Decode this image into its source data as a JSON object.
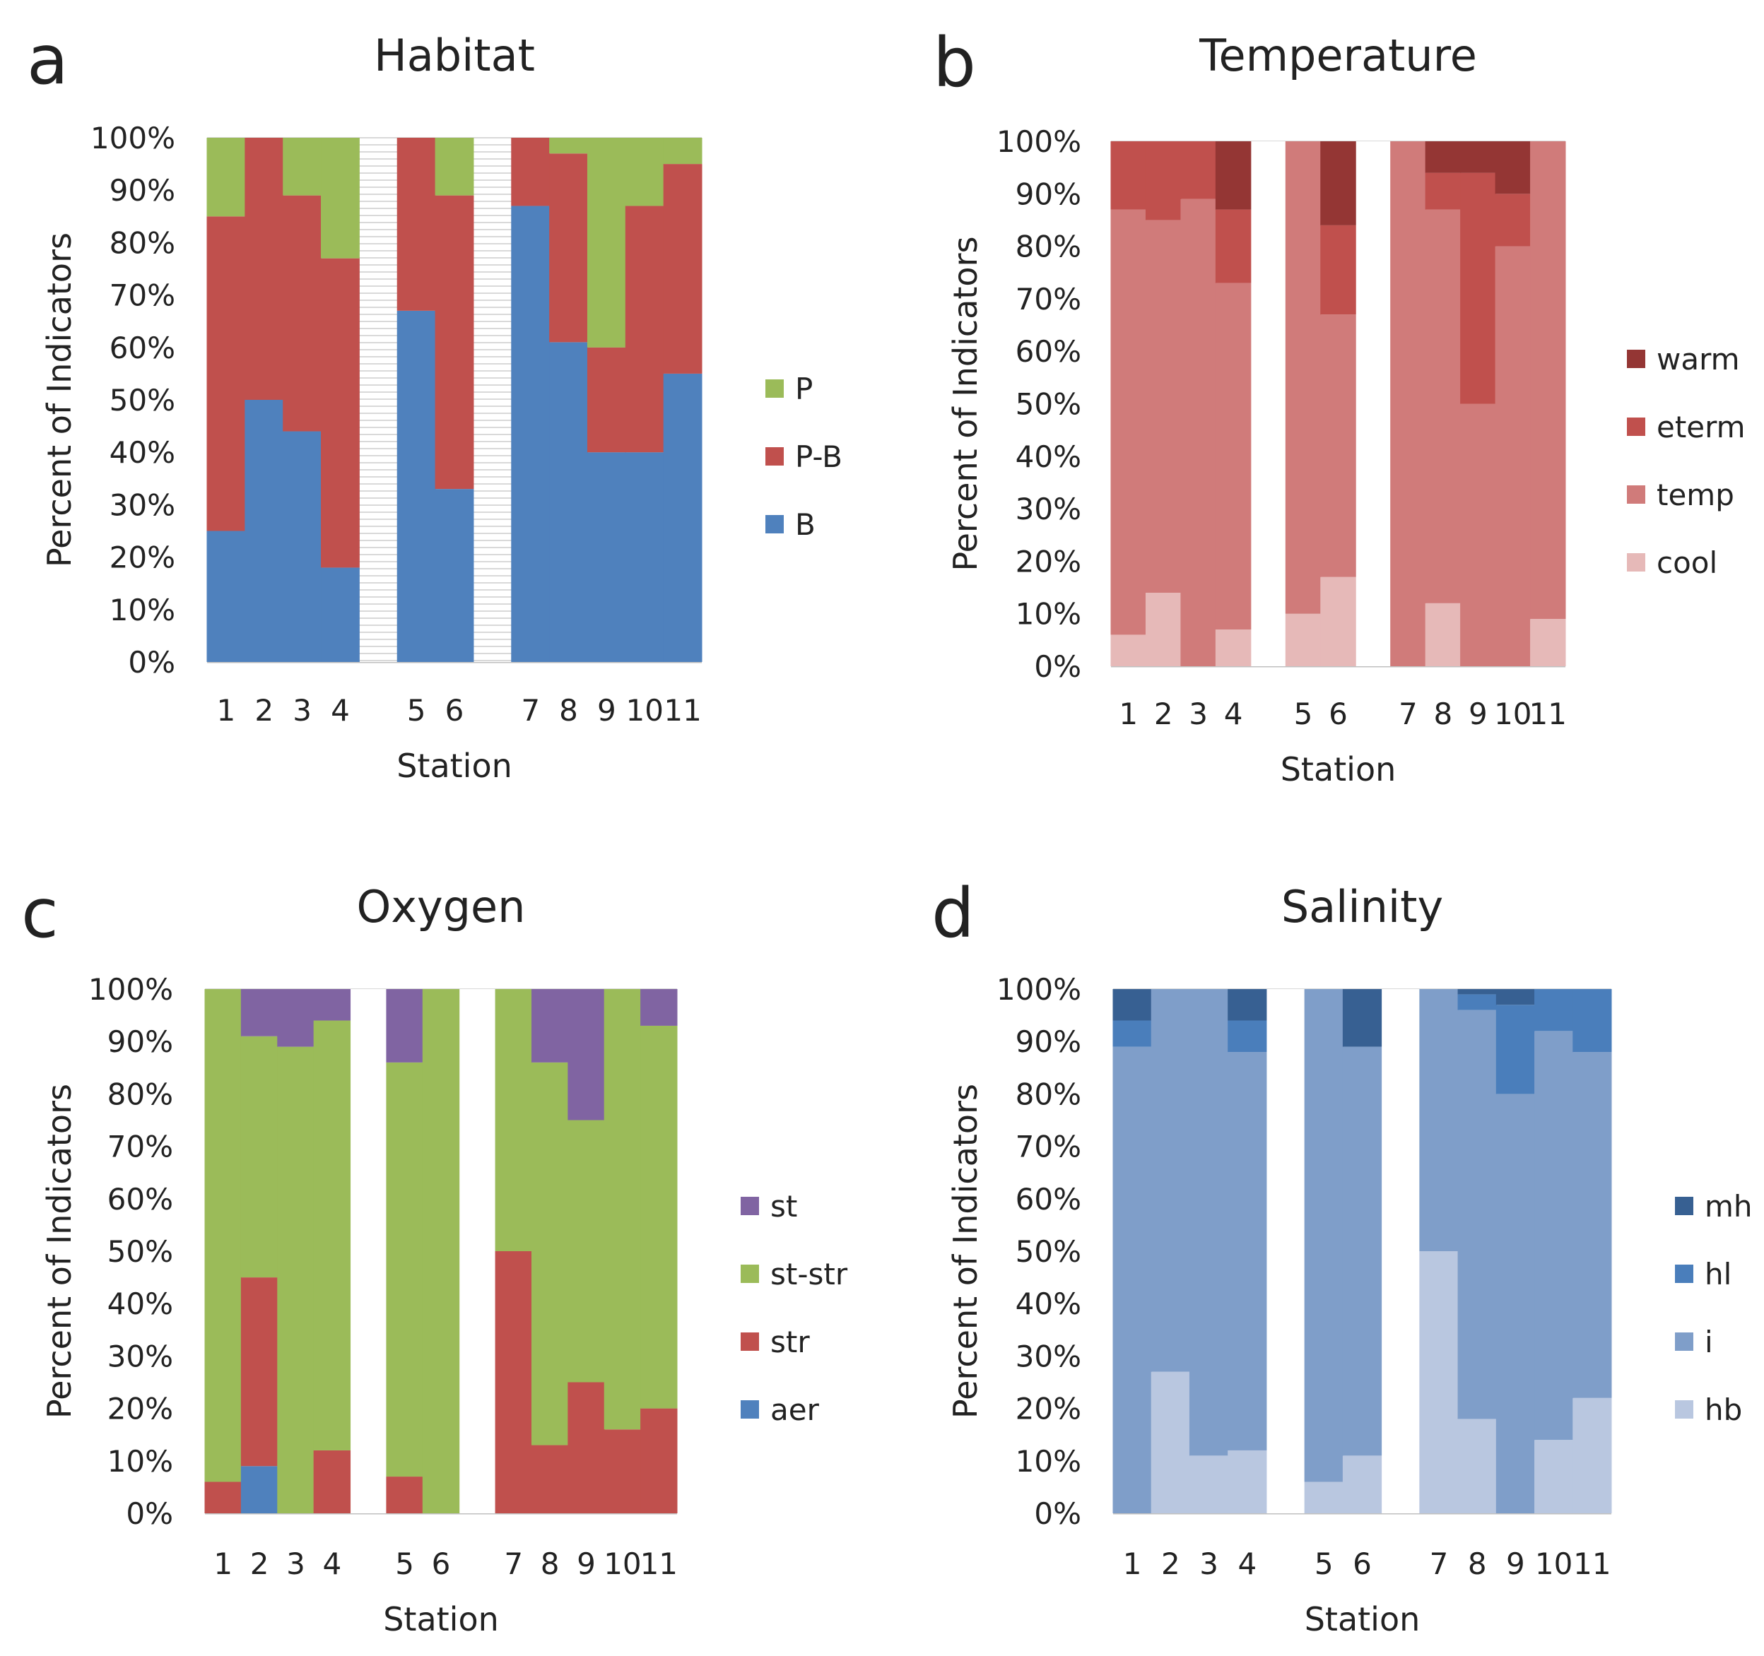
{
  "figure": {
    "panels": [
      "a",
      "b",
      "c",
      "d"
    ]
  },
  "chart_data": [
    {
      "type": "bar",
      "stacked": true,
      "panel": "a",
      "title": "Habitat",
      "xlabel": "Station",
      "ylabel": "Percent of Indicators",
      "ylim": [
        0,
        100
      ],
      "y_ticks": [
        "0%",
        "10%",
        "20%",
        "30%",
        "40%",
        "50%",
        "60%",
        "70%",
        "80%",
        "90%",
        "100%"
      ],
      "categories": [
        "1",
        "2",
        "3",
        "4",
        "5",
        "6",
        "7",
        "8",
        "9",
        "10",
        "11"
      ],
      "groups": [
        [
          "1",
          "2",
          "3",
          "4"
        ],
        [
          "5",
          "6"
        ],
        [
          "7",
          "8",
          "9",
          "10",
          "11"
        ]
      ],
      "separator_style": "hatched",
      "legend_position": "right",
      "series": [
        {
          "name": "B",
          "color": "#4f81bd",
          "values": [
            25,
            50,
            44,
            18,
            67,
            33,
            87,
            61,
            40,
            40,
            55
          ]
        },
        {
          "name": "P-B",
          "color": "#c0504d",
          "values": [
            60,
            50,
            45,
            59,
            33,
            56,
            13,
            36,
            20,
            47,
            40
          ]
        },
        {
          "name": "P",
          "color": "#9bbb59",
          "values": [
            15,
            0,
            11,
            23,
            0,
            11,
            0,
            3,
            40,
            13,
            5
          ]
        }
      ],
      "legend": [
        "P",
        "P-B",
        "B"
      ]
    },
    {
      "type": "bar",
      "stacked": true,
      "panel": "b",
      "title": "Temperature",
      "xlabel": "Station",
      "ylabel": "Percent of Indicators",
      "ylim": [
        0,
        100
      ],
      "y_ticks": [
        "0%",
        "10%",
        "20%",
        "30%",
        "40%",
        "50%",
        "60%",
        "70%",
        "80%",
        "90%",
        "100%"
      ],
      "categories": [
        "1",
        "2",
        "3",
        "4",
        "5",
        "6",
        "7",
        "8",
        "9",
        "10",
        "11"
      ],
      "groups": [
        [
          "1",
          "2",
          "3",
          "4"
        ],
        [
          "5",
          "6"
        ],
        [
          "7",
          "8",
          "9",
          "10",
          "11"
        ]
      ],
      "separator_style": "plain",
      "legend_position": "right",
      "series": [
        {
          "name": "cool",
          "color": "#e6b9b8",
          "values": [
            6,
            14,
            0,
            7,
            10,
            17,
            0,
            12,
            0,
            0,
            9
          ]
        },
        {
          "name": "temp",
          "color": "#d07b7a",
          "values": [
            81,
            71,
            89,
            66,
            90,
            50,
            100,
            75,
            50,
            80,
            91
          ]
        },
        {
          "name": "eterm",
          "color": "#c0504d",
          "values": [
            13,
            15,
            11,
            14,
            0,
            17,
            0,
            7,
            44,
            10,
            0
          ]
        },
        {
          "name": "warm",
          "color": "#943634",
          "values": [
            0,
            0,
            0,
            13,
            0,
            16,
            0,
            6,
            6,
            10,
            0
          ]
        }
      ],
      "legend": [
        "warm",
        "eterm",
        "temp",
        "cool"
      ]
    },
    {
      "type": "bar",
      "stacked": true,
      "panel": "c",
      "title": "Oxygen",
      "xlabel": "Station",
      "ylabel": "Percent of Indicators",
      "ylim": [
        0,
        100
      ],
      "y_ticks": [
        "0%",
        "10%",
        "20%",
        "30%",
        "40%",
        "50%",
        "60%",
        "70%",
        "80%",
        "90%",
        "100%"
      ],
      "categories": [
        "1",
        "2",
        "3",
        "4",
        "5",
        "6",
        "7",
        "8",
        "9",
        "10",
        "11"
      ],
      "groups": [
        [
          "1",
          "2",
          "3",
          "4"
        ],
        [
          "5",
          "6"
        ],
        [
          "7",
          "8",
          "9",
          "10",
          "11"
        ]
      ],
      "separator_style": "plain",
      "legend_position": "right",
      "series": [
        {
          "name": "aer",
          "color": "#4f81bd",
          "values": [
            0,
            9,
            0,
            0,
            0,
            0,
            0,
            0,
            0,
            0,
            0
          ]
        },
        {
          "name": "str",
          "color": "#c0504d",
          "values": [
            6,
            36,
            0,
            12,
            7,
            0,
            50,
            13,
            25,
            16,
            20
          ]
        },
        {
          "name": "st-str",
          "color": "#9bbb59",
          "values": [
            94,
            46,
            89,
            82,
            79,
            100,
            50,
            73,
            50,
            84,
            73
          ]
        },
        {
          "name": "st",
          "color": "#8064a2",
          "values": [
            0,
            9,
            11,
            6,
            14,
            0,
            0,
            14,
            25,
            0,
            7
          ]
        }
      ],
      "legend": [
        "st",
        "st-str",
        "str",
        "aer"
      ]
    },
    {
      "type": "bar",
      "stacked": true,
      "panel": "d",
      "title": "Salinity",
      "xlabel": "Station",
      "ylabel": "Percent of Indicators",
      "ylim": [
        0,
        100
      ],
      "y_ticks": [
        "0%",
        "10%",
        "20%",
        "30%",
        "40%",
        "50%",
        "60%",
        "70%",
        "80%",
        "90%",
        "100%"
      ],
      "categories": [
        "1",
        "2",
        "3",
        "4",
        "5",
        "6",
        "7",
        "8",
        "9",
        "10",
        "11"
      ],
      "groups": [
        [
          "1",
          "2",
          "3",
          "4"
        ],
        [
          "5",
          "6"
        ],
        [
          "7",
          "8",
          "9",
          "10",
          "11"
        ]
      ],
      "separator_style": "plain",
      "legend_position": "right",
      "series": [
        {
          "name": "hb",
          "color": "#b9c7e0",
          "values": [
            0,
            27,
            11,
            12,
            6,
            11,
            50,
            18,
            0,
            14,
            22
          ]
        },
        {
          "name": "i",
          "color": "#7f9ec9",
          "values": [
            89,
            73,
            89,
            76,
            94,
            78,
            50,
            78,
            80,
            78,
            66
          ]
        },
        {
          "name": "hl",
          "color": "#4a7ebb",
          "values": [
            5,
            0,
            0,
            6,
            0,
            0,
            0,
            3,
            17,
            8,
            12
          ]
        },
        {
          "name": "mh",
          "color": "#376092",
          "values": [
            6,
            0,
            0,
            6,
            0,
            11,
            0,
            1,
            3,
            0,
            0
          ]
        }
      ],
      "legend": [
        "mh",
        "hl",
        "i",
        "hb"
      ]
    }
  ]
}
